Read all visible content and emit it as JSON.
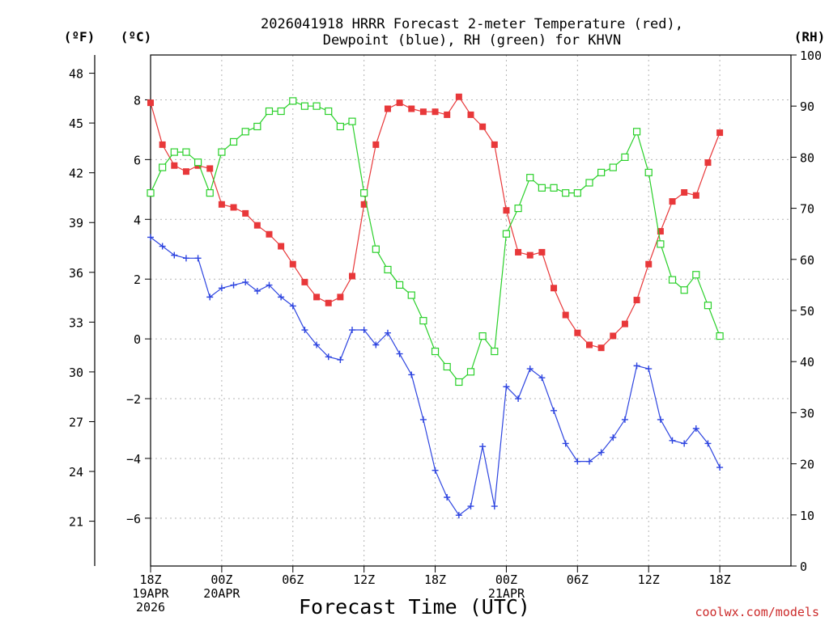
{
  "chart_data": {
    "type": "line",
    "title_line1": "2026041918 HRRR Forecast 2-meter Temperature (red),",
    "title_line2": "Dewpoint (blue), RH (green) for KHVN",
    "xlabel": "Forecast Time (UTC)",
    "credit": "coolwx.com/models",
    "left_outer_axis": {
      "unit": "(ºF)",
      "range": [
        18.3,
        49.1
      ],
      "ticks": [
        "21",
        "24",
        "27",
        "30",
        "33",
        "36",
        "39",
        "42",
        "45",
        "48"
      ]
    },
    "left_inner_axis": {
      "unit": "(ºC)",
      "range": [
        -7.6,
        9.5
      ],
      "ticks": [
        "−6",
        "−4",
        "−2",
        "0",
        "2",
        "4",
        "6",
        "8"
      ]
    },
    "right_axis": {
      "unit": "(RH)",
      "range": [
        0,
        100
      ],
      "ticks": [
        "0",
        "10",
        "20",
        "30",
        "40",
        "50",
        "60",
        "70",
        "80",
        "90",
        "100"
      ]
    },
    "x": {
      "hours": [
        0,
        54
      ],
      "ticks": [
        {
          "hour": 0,
          "lines": [
            "18Z",
            "19APR",
            "2026"
          ]
        },
        {
          "hour": 6,
          "lines": [
            "00Z",
            "20APR"
          ]
        },
        {
          "hour": 12,
          "lines": [
            "06Z"
          ]
        },
        {
          "hour": 18,
          "lines": [
            "12Z"
          ]
        },
        {
          "hour": 24,
          "lines": [
            "18Z"
          ]
        },
        {
          "hour": 30,
          "lines": [
            "00Z",
            "21APR"
          ]
        },
        {
          "hour": 36,
          "lines": [
            "06Z"
          ]
        },
        {
          "hour": 42,
          "lines": [
            "12Z"
          ]
        },
        {
          "hour": 48,
          "lines": [
            "18Z"
          ]
        }
      ]
    },
    "series": [
      {
        "name": "2-meter Temperature",
        "units": "C",
        "color": "#e8383a",
        "marker": "filled-square",
        "values": [
          7.9,
          6.5,
          5.8,
          5.6,
          5.8,
          5.7,
          4.5,
          4.4,
          4.2,
          3.8,
          3.5,
          3.1,
          2.5,
          1.9,
          1.4,
          1.2,
          1.4,
          2.1,
          4.5,
          6.5,
          7.7,
          7.9,
          7.7,
          7.6,
          7.6,
          7.5,
          8.1,
          7.5,
          7.1,
          6.5,
          4.3,
          2.9,
          2.8,
          2.9,
          1.7,
          0.8,
          0.2,
          -0.2,
          -0.3,
          0.1,
          0.5,
          1.3,
          2.5,
          3.6,
          4.6,
          4.9,
          4.8,
          5.9,
          6.9
        ]
      },
      {
        "name": "Dewpoint",
        "units": "C",
        "color": "#2e45e0",
        "marker": "plus",
        "values": [
          3.4,
          3.1,
          2.8,
          2.7,
          2.7,
          1.4,
          1.7,
          1.8,
          1.9,
          1.6,
          1.8,
          1.4,
          1.1,
          0.3,
          -0.2,
          -0.6,
          -0.7,
          0.3,
          0.3,
          -0.2,
          0.2,
          -0.5,
          -1.2,
          -2.7,
          -4.4,
          -5.3,
          -5.9,
          -5.6,
          -3.6,
          -5.6,
          -1.6,
          -2.0,
          -1.0,
          -1.3,
          -2.4,
          -3.5,
          -4.1,
          -4.1,
          -3.8,
          -3.3,
          -2.7,
          -0.9,
          -1.0,
          -2.7,
          -3.4,
          -3.5,
          -3.0,
          -3.5,
          -4.3
        ]
      },
      {
        "name": "RH",
        "units": "%",
        "color": "#2ad02a",
        "marker": "open-square",
        "values": [
          73,
          78,
          81,
          81,
          79,
          73,
          81,
          83,
          85,
          86,
          89,
          89,
          91,
          90,
          90,
          89,
          86,
          87,
          73,
          62,
          58,
          55,
          53,
          48,
          42,
          39,
          36,
          38,
          45,
          42,
          65,
          70,
          76,
          74,
          74,
          73,
          73,
          75,
          77,
          78,
          80,
          85,
          77,
          63,
          56,
          54,
          57,
          51,
          45
        ]
      }
    ]
  }
}
